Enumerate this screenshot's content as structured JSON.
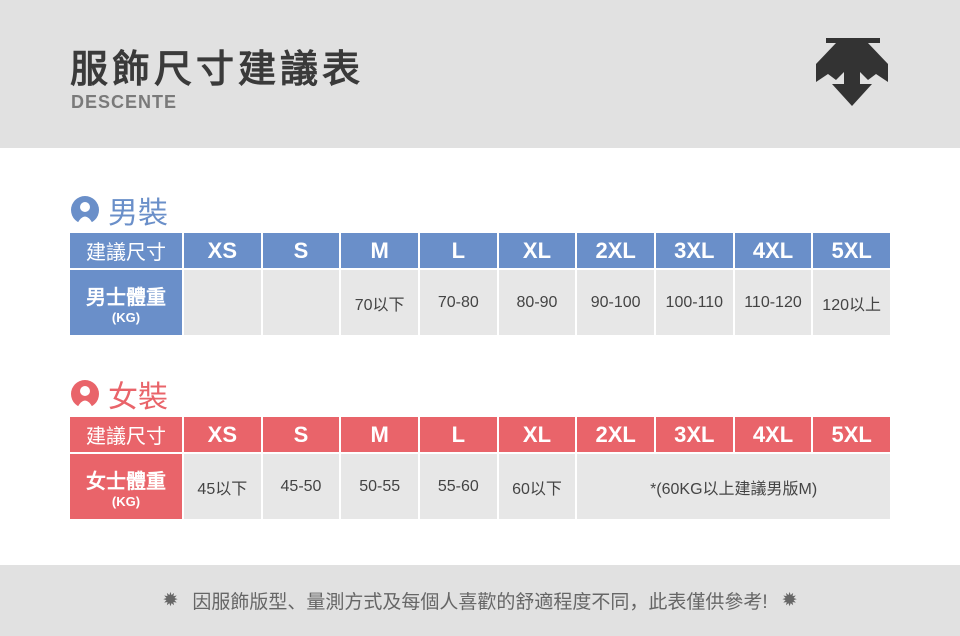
{
  "header": {
    "title": "服飾尺寸建議表",
    "brand": "DESCENTE",
    "logo": "descente-arrows-logo"
  },
  "colors": {
    "men": "#6a8fc9",
    "women": "#e9646a",
    "cell": "#e7e7e7",
    "band": "#e1e1e1"
  },
  "sizes": [
    "XS",
    "S",
    "M",
    "L",
    "XL",
    "2XL",
    "3XL",
    "4XL",
    "5XL"
  ],
  "men": {
    "title": "男裝",
    "size_label": "建議尺寸",
    "weight_label": "男士體重",
    "unit": "(KG)",
    "values": [
      "",
      "",
      "70以下",
      "70-80",
      "80-90",
      "90-100",
      "100-110",
      "110-120",
      "120以上"
    ]
  },
  "women": {
    "title": "女裝",
    "size_label": "建議尺寸",
    "weight_label": "女士體重",
    "unit": "(KG)",
    "values": [
      "45以下",
      "45-50",
      "50-55",
      "55-60",
      "60以下"
    ],
    "note": "*(60KG以上建議男版M)"
  },
  "footer": {
    "text": "因服飾版型、量測方式及每個人喜歡的舒適程度不同，此表僅供參考!",
    "star": "✹"
  }
}
